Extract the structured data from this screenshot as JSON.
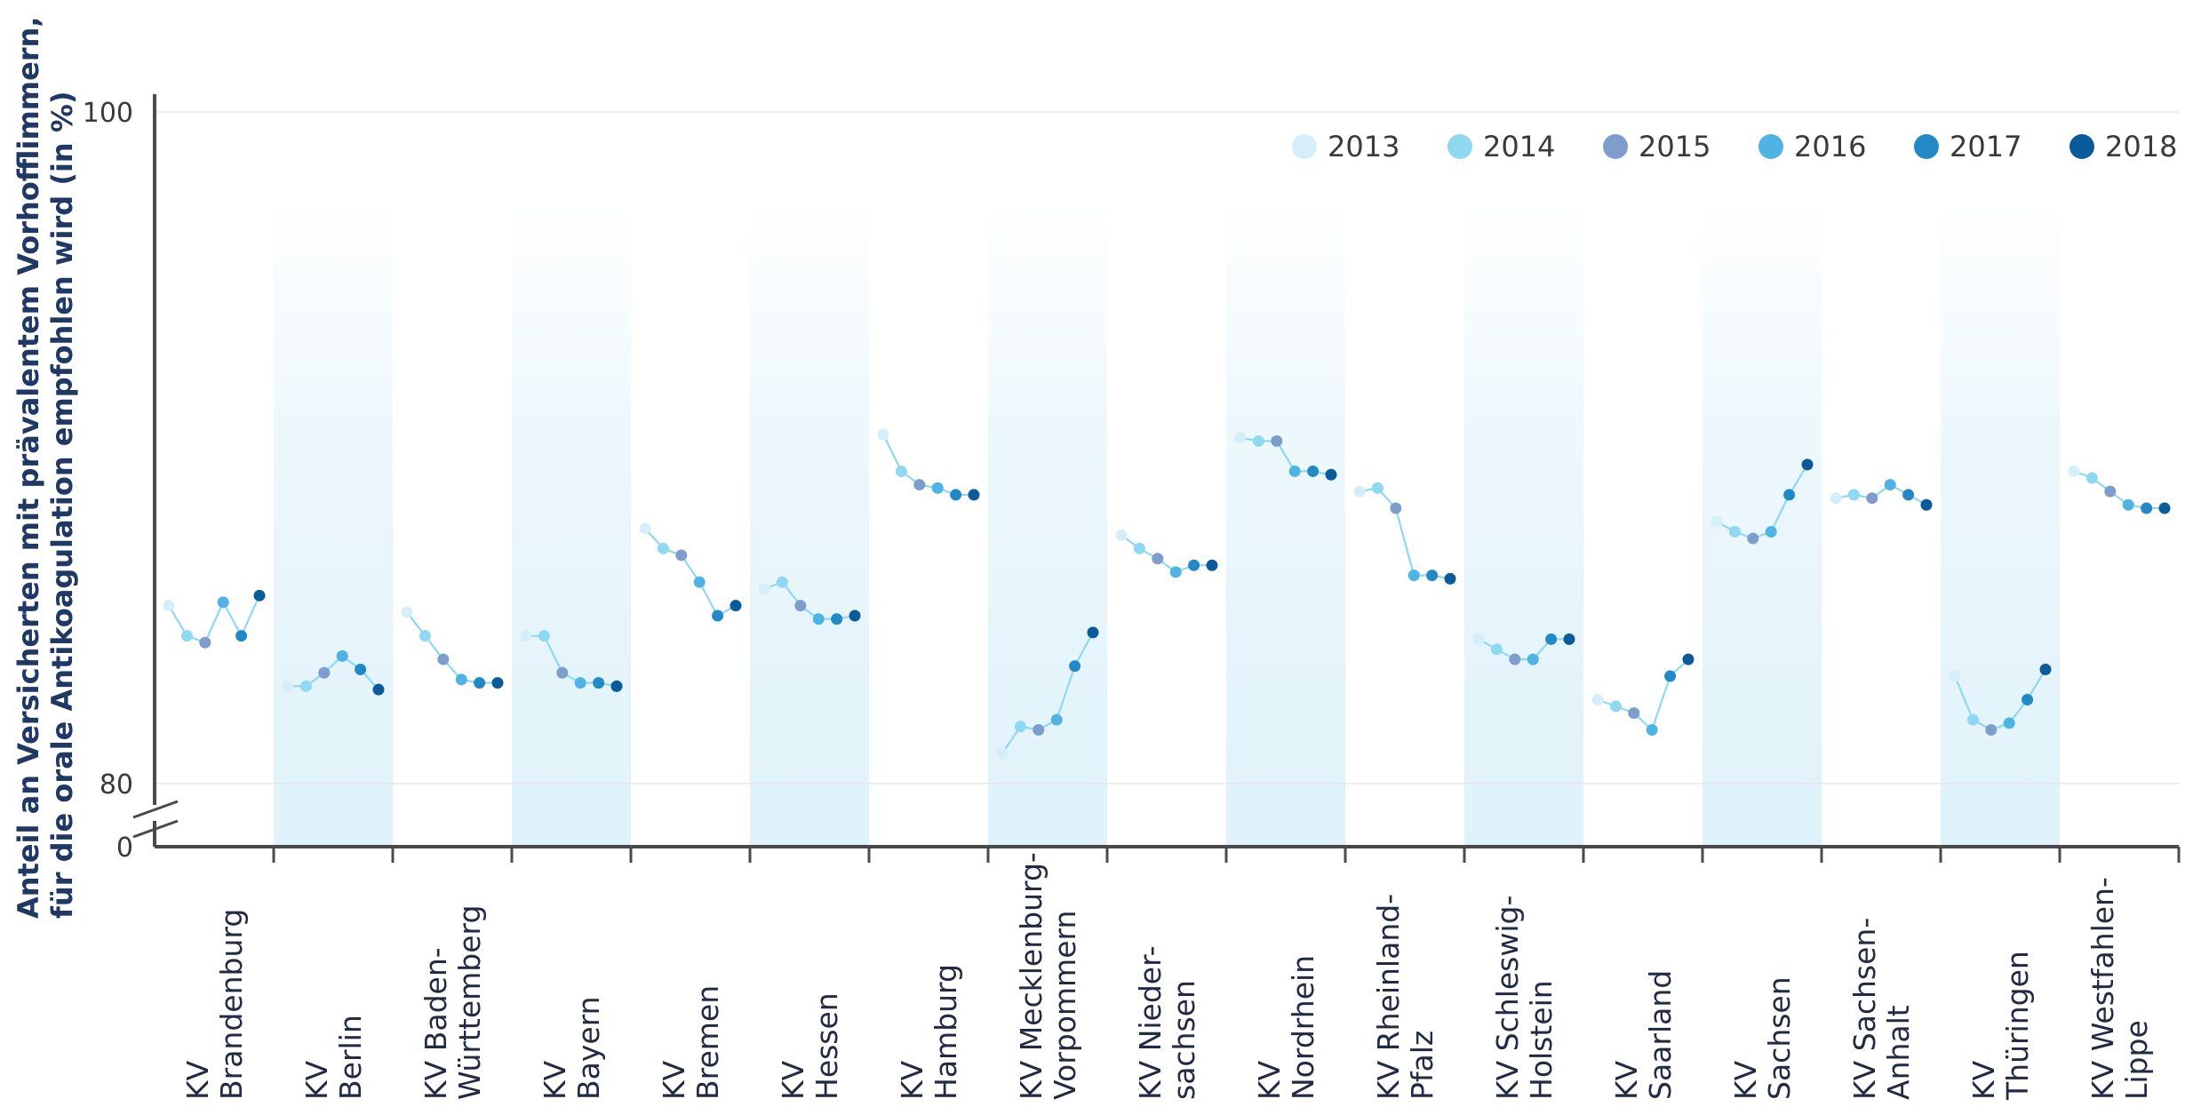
{
  "chart_data": {
    "type": "line",
    "title": "",
    "xlabel": "",
    "ylabel_lines": [
      "Anteil an Versicherten mit prävalentem Vorhofflimmern,",
      "für die orale Antikoagulation empfohlen wird (in %)"
    ],
    "y_axis": {
      "ylim": [
        80,
        100
      ],
      "break_from": 0,
      "tick_labels": [
        "0",
        "80",
        "100"
      ],
      "broken": true
    },
    "grid": true,
    "legend_position": "top-right",
    "years": [
      "2013",
      "2014",
      "2015",
      "2016",
      "2017",
      "2018"
    ],
    "colors": {
      "2013": "#d6eef9",
      "2014": "#8fd8f2",
      "2015": "#7f9dcc",
      "2016": "#4fb3e3",
      "2017": "#2389c6",
      "2018": "#0b5a99",
      "line": "#8fd8f2",
      "band": "#dff2fa",
      "axis": "#4a4a4a",
      "grid": "#e6e6e6"
    },
    "categories": [
      {
        "label_lines": [
          "KV",
          "Brandenburg"
        ],
        "shaded": false,
        "values": [
          85.3,
          84.4,
          84.2,
          85.4,
          84.4,
          85.6
        ]
      },
      {
        "label_lines": [
          "KV",
          "Berlin"
        ],
        "shaded": true,
        "values": [
          82.9,
          82.9,
          83.3,
          83.8,
          83.4,
          82.8
        ]
      },
      {
        "label_lines": [
          "KV Baden-",
          "Württemberg"
        ],
        "shaded": false,
        "values": [
          85.1,
          84.4,
          83.7,
          83.1,
          83.0,
          83.0
        ]
      },
      {
        "label_lines": [
          "KV",
          "Bayern"
        ],
        "shaded": true,
        "values": [
          84.4,
          84.4,
          83.3,
          83.0,
          83.0,
          82.9
        ]
      },
      {
        "label_lines": [
          "KV",
          "Bremen"
        ],
        "shaded": false,
        "values": [
          87.6,
          87.0,
          86.8,
          86.0,
          85.0,
          85.3
        ]
      },
      {
        "label_lines": [
          "KV",
          "Hessen"
        ],
        "shaded": true,
        "values": [
          85.8,
          86.0,
          85.3,
          84.9,
          84.9,
          85.0
        ]
      },
      {
        "label_lines": [
          "KV",
          "Hamburg"
        ],
        "shaded": false,
        "values": [
          90.4,
          89.3,
          88.9,
          88.8,
          88.6,
          88.6
        ]
      },
      {
        "label_lines": [
          "KV Mecklenburg-",
          "Vorpommern"
        ],
        "shaded": true,
        "values": [
          80.9,
          81.7,
          81.6,
          81.9,
          83.5,
          84.5
        ]
      },
      {
        "label_lines": [
          "KV Nieder-",
          "sachsen"
        ],
        "shaded": false,
        "values": [
          87.4,
          87.0,
          86.7,
          86.3,
          86.5,
          86.5
        ]
      },
      {
        "label_lines": [
          "KV",
          "Nordrhein"
        ],
        "shaded": true,
        "values": [
          90.3,
          90.2,
          90.2,
          89.3,
          89.3,
          89.2
        ]
      },
      {
        "label_lines": [
          "KV Rheinland-",
          "Pfalz"
        ],
        "shaded": false,
        "values": [
          88.7,
          88.8,
          88.2,
          86.2,
          86.2,
          86.1
        ]
      },
      {
        "label_lines": [
          "KV Schleswig-",
          "Holstein"
        ],
        "shaded": true,
        "values": [
          84.3,
          84.0,
          83.7,
          83.7,
          84.3,
          84.3
        ]
      },
      {
        "label_lines": [
          "KV",
          "Saarland"
        ],
        "shaded": false,
        "values": [
          82.5,
          82.3,
          82.1,
          81.6,
          83.2,
          83.7
        ]
      },
      {
        "label_lines": [
          "KV",
          "Sachsen"
        ],
        "shaded": true,
        "values": [
          87.8,
          87.5,
          87.3,
          87.5,
          88.6,
          89.5
        ]
      },
      {
        "label_lines": [
          "KV Sachsen-",
          "Anhalt"
        ],
        "shaded": false,
        "values": [
          88.5,
          88.6,
          88.5,
          88.9,
          88.6,
          88.3
        ]
      },
      {
        "label_lines": [
          "KV",
          "Thüringen"
        ],
        "shaded": true,
        "values": [
          83.2,
          81.9,
          81.6,
          81.8,
          82.5,
          83.4
        ]
      },
      {
        "label_lines": [
          "KV Westfahlen-",
          "Lippe"
        ],
        "shaded": false,
        "values": [
          89.3,
          89.1,
          88.7,
          88.3,
          88.2,
          88.2
        ]
      }
    ]
  }
}
